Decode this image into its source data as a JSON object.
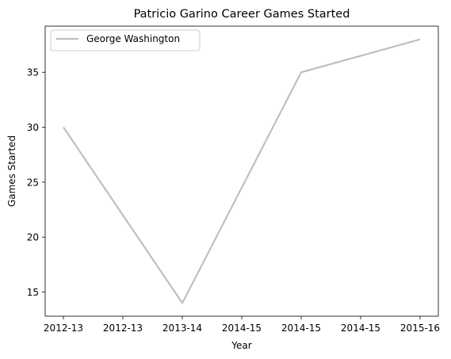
{
  "chart_data": {
    "type": "line",
    "title": "Patricio Garino Career Games Started",
    "xlabel": "Year",
    "ylabel": "Games Started",
    "x_tick_labels": [
      "2012-13",
      "2012-13",
      "2013-14",
      "2014-15",
      "2014-15",
      "2014-15",
      "2015-16"
    ],
    "categories": [
      "2012-13",
      "2013-14",
      "2014-15",
      "2015-16"
    ],
    "series": [
      {
        "name": "George Washington",
        "color": "#bfbfbf",
        "values": [
          30,
          14,
          35,
          38
        ]
      }
    ],
    "yticks": [
      15,
      20,
      25,
      30,
      35
    ],
    "ylim": [
      12.8,
      39.2
    ],
    "grid": false,
    "legend": "top-left"
  }
}
